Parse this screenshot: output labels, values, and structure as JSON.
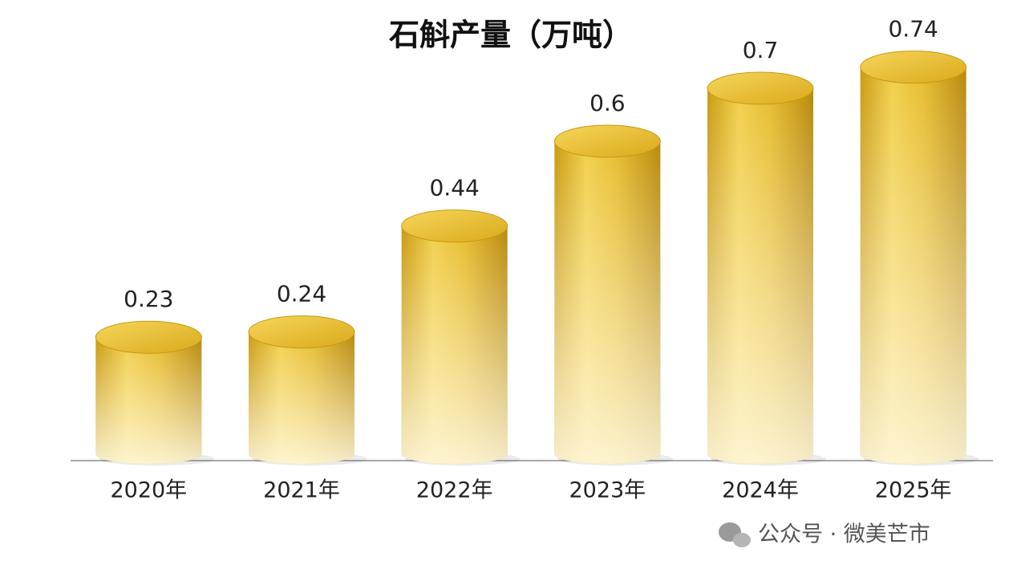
{
  "chart_data": {
    "type": "bar",
    "title": "石斛产量（万吨）",
    "categories": [
      "2020年",
      "2021年",
      "2022年",
      "2023年",
      "2024年",
      "2025年"
    ],
    "values": [
      0.23,
      0.24,
      0.44,
      0.6,
      0.7,
      0.74
    ],
    "color": "#e0b42a"
  },
  "watermark": "公众号 · 微美芒市"
}
